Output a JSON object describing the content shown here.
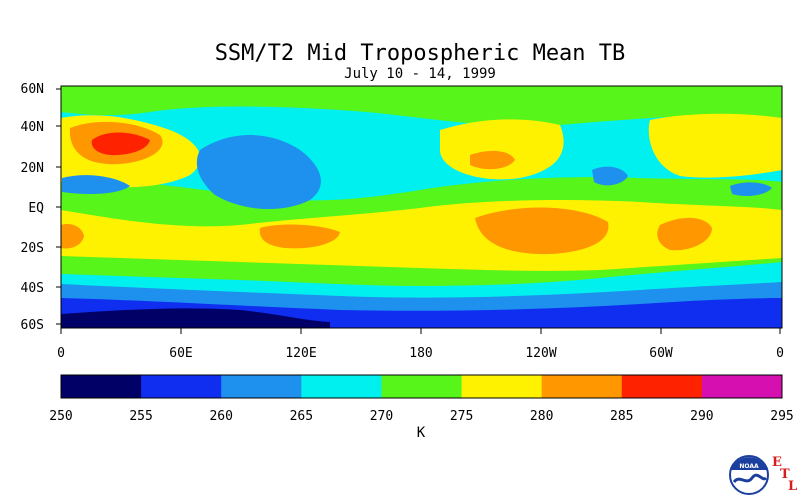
{
  "title": "SSM/T2 Mid Tropospheric Mean TB",
  "subtitle": "July 10 - 14, 1999",
  "lat_ticks": [
    "60N",
    "40N",
    "20N",
    "EQ",
    "20S",
    "40S",
    "60S"
  ],
  "lon_ticks": [
    "0",
    "60E",
    "120E",
    "180",
    "120W",
    "60W",
    "0"
  ],
  "colorbar": {
    "ticks": [
      "250",
      "255",
      "260",
      "265",
      "270",
      "275",
      "280",
      "285",
      "290",
      "295"
    ],
    "unit": "K",
    "colors": [
      "#000066",
      "#0f2ef0",
      "#1e90ee",
      "#00f0f0",
      "#58f51a",
      "#fff200",
      "#ff9800",
      "#ff2200",
      "#d50fb0"
    ]
  },
  "logo": {
    "text": "NOAA",
    "letters": [
      "E",
      "T",
      "L"
    ]
  }
}
